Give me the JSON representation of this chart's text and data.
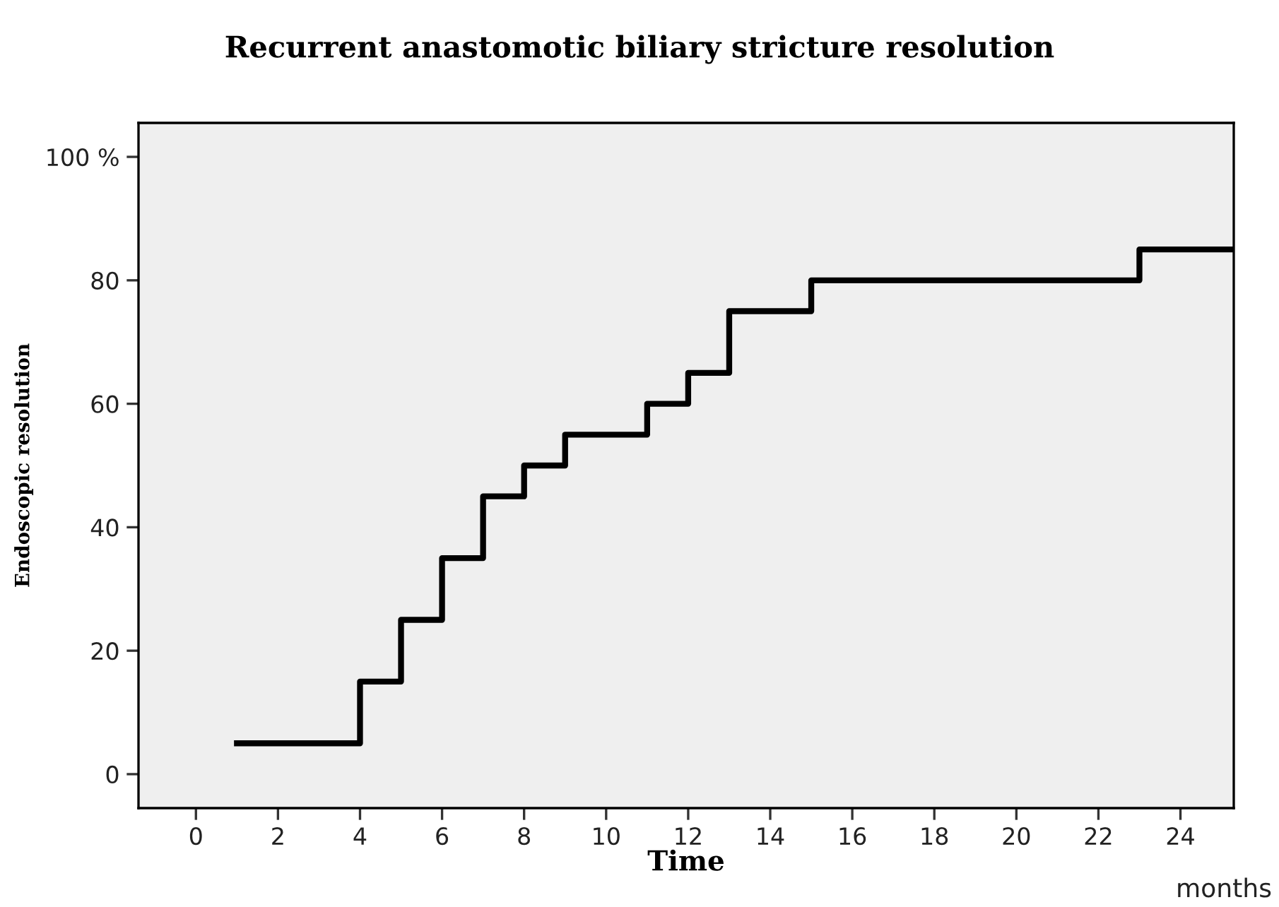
{
  "chart_data": {
    "type": "step",
    "title": "Recurrent anastomotic biliary stricture resolution",
    "xlabel": "Time",
    "ylabel": "Endoscopic resolution",
    "annotations": [
      "months"
    ],
    "series": [
      {
        "color": "#000000",
        "x": [
          1,
          4,
          5,
          6,
          7,
          8,
          9,
          11,
          12,
          13,
          15,
          23,
          25.3
        ],
        "values": [
          5,
          15,
          25,
          35,
          45,
          50,
          55,
          60,
          65,
          75,
          80,
          85,
          85
        ]
      }
    ],
    "xlim": [
      -1.4,
      25.3
    ],
    "xticks": [
      0,
      2,
      4,
      6,
      8,
      10,
      12,
      14,
      16,
      18,
      20,
      22,
      24
    ],
    "ylim": [
      -5.5,
      105.5
    ],
    "yticks": [
      0,
      20,
      40,
      60,
      80,
      {
        "value": 100,
        "label": "100 %"
      }
    ],
    "grid": false,
    "legend": false
  }
}
